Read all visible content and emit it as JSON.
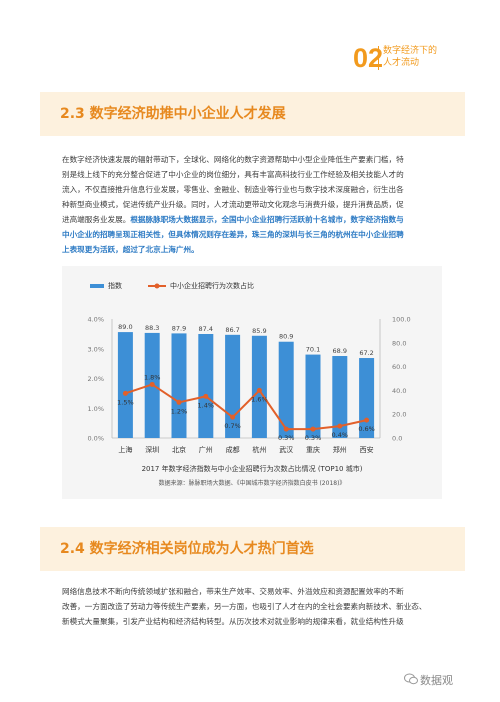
{
  "header": {
    "number": "02",
    "title_line1": "数字经济下的",
    "title_line2": "人才流动"
  },
  "section1": {
    "heading": "2.3 数字经济助推中小企业人才发展",
    "para_lines": [
      "在数字经济快速发展的辐射带动下，全球化、网络化的数字资源帮助中小型企业降低生产要素门槛，特",
      "别是线上线下的充分整合促进了中小企业的岗位细分，具有丰富高科技行业工作经验及相关技能人才的",
      "流入，不仅直接推升信息行业发展，零售业、金融业、制造业等行业也与数字技术深度融合，衍生出各",
      "种新型商业模式，促进传统产业升级。同时，人才流动更带动文化观念与消费升级，提升消费品质，促",
      "进高端服务业发展。"
    ],
    "highlight_tail": "根据脉脉职场大数据显示，全国中小企业招聘行活跃前十名城市，数字经济指数与",
    "highlight_lines": [
      "中小企业的招聘呈现正相关性，但具体情况则存在差异，珠三角的深圳与长三角的杭州在中小企业招聘",
      "上表现更为活跃，超过了北京上海广州。"
    ]
  },
  "chart_data": {
    "type": "bar+line",
    "legend": [
      "指数",
      "中小企业招聘行为次数占比"
    ],
    "categories": [
      "上海",
      "深圳",
      "北京",
      "广州",
      "成都",
      "杭州",
      "武汉",
      "重庆",
      "郑州",
      "西安"
    ],
    "series": [
      {
        "name": "指数",
        "type": "bar",
        "axis": "right",
        "values": [
          89.0,
          88.3,
          87.9,
          87.4,
          86.7,
          85.9,
          80.9,
          70.1,
          68.9,
          67.2
        ],
        "labels": [
          "89.0",
          "88.3",
          "87.9",
          "87.4",
          "86.7",
          "85.9",
          "80.9",
          "70.1",
          "68.9",
          "67.2"
        ]
      },
      {
        "name": "中小企业招聘行为次数占比",
        "type": "line",
        "axis": "left",
        "values": [
          1.5,
          1.8,
          1.2,
          1.4,
          0.7,
          1.6,
          0.3,
          0.3,
          0.4,
          0.6
        ],
        "labels": [
          "1.5%",
          "1.8%",
          "1.2%",
          "1.4%",
          "0.7%",
          "1.6%",
          "0.3%",
          "0.3%",
          "0.4%",
          "0.6%"
        ]
      }
    ],
    "left_ticks": [
      "4.0%",
      "3.0%",
      "2.0%",
      "1.0%",
      "0.0%"
    ],
    "left_range": [
      0,
      4.0
    ],
    "right_ticks": [
      "100.0",
      "80.0",
      "60.0",
      "40.0",
      "20.0",
      "0.0"
    ],
    "right_range": [
      0,
      100
    ],
    "colors": {
      "bar": "#3d8fd6",
      "line": "#e2602a",
      "bg": "#f5f5f5"
    },
    "caption": "2017 年数字经济指数与中小企业招聘行为次数占比情况 (TOP10 城市)",
    "source": "数据来源：脉脉职场大数据、《中国城市数字经济指数白皮书 (2018)》"
  },
  "section2": {
    "heading": "2.4 数字经济相关岗位成为人才热门首选",
    "para_lines": [
      "网络信息技术不断向传统领域扩张和融合，带来生产效率、交易效率、外溢效应和资源配置效率的不断",
      "改善，一方面改造了劳动力等传统生产要素，另一方面，也吸引了人才在内的全社会要素向新技术、新业态、",
      "新模式大量聚集，引发产业结构和经济结构转型。从历次技术对就业影响的规律来看，就业结构性升级"
    ]
  },
  "watermark": "数据观",
  "colors": {
    "accent": "#f29a1d",
    "heading_bg": "#fdf1de",
    "highlight": "#2e7bc4"
  }
}
